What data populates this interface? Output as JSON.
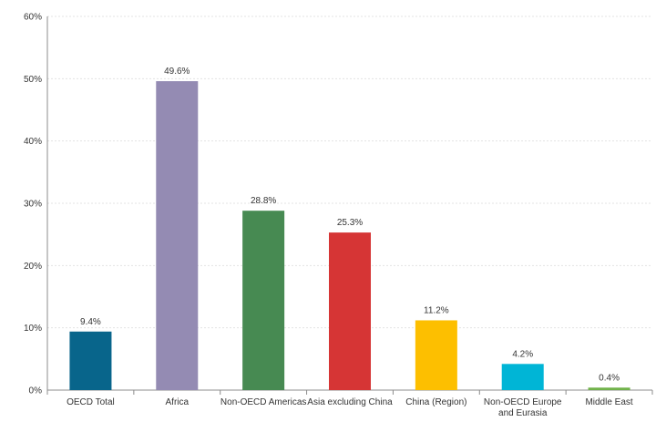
{
  "chart_data": {
    "type": "bar",
    "categories": [
      [
        "OECD Total"
      ],
      [
        "Africa"
      ],
      [
        "Non-OECD Americas"
      ],
      [
        "Asia excluding China"
      ],
      [
        "China (Region)"
      ],
      [
        "Non-OECD Europe",
        "and Eurasia"
      ],
      [
        "Middle East"
      ]
    ],
    "values": [
      9.4,
      49.6,
      28.8,
      25.3,
      11.2,
      4.2,
      0.4
    ],
    "value_labels": [
      "9.4%",
      "49.6%",
      "28.8%",
      "25.3%",
      "11.2%",
      "4.2%",
      "0.4%"
    ],
    "colors": [
      "#08658b",
      "#948bb3",
      "#478a52",
      "#d63535",
      "#fdbf00",
      "#00b5d6",
      "#70b24a"
    ],
    "yticks": [
      "0%",
      "10%",
      "20%",
      "30%",
      "40%",
      "50%",
      "60%"
    ],
    "ylim": [
      0,
      60
    ],
    "grid": true,
    "title": "",
    "xlabel": "",
    "ylabel": ""
  }
}
